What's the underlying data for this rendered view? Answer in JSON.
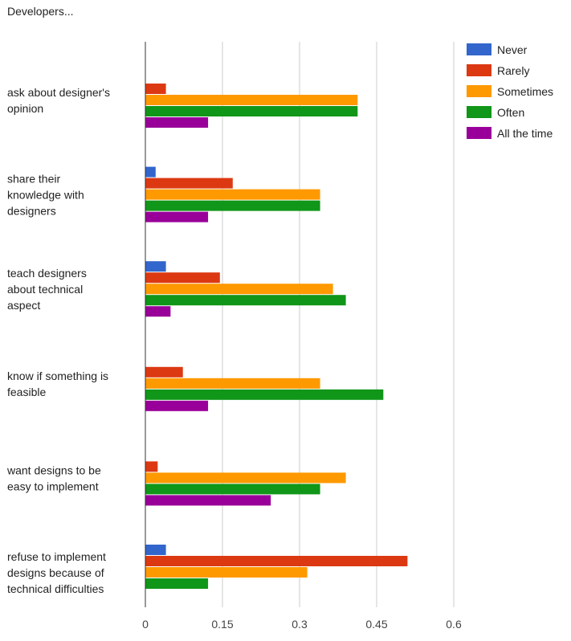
{
  "chart_data": {
    "type": "bar",
    "orientation": "horizontal",
    "title": "Developers...",
    "xlabel": "",
    "ylabel": "",
    "xlim": [
      0,
      0.6
    ],
    "xticks": [
      "0",
      "0.15",
      "0.3",
      "0.45",
      "0.6"
    ],
    "grid": true,
    "legend_position": "top-right",
    "categories": [
      [
        "ask about designer's",
        "opinion"
      ],
      [
        "share their",
        "knowledge with",
        "designers"
      ],
      [
        "teach designers",
        "about technical",
        "aspect"
      ],
      [
        "know if something is",
        "feasible"
      ],
      [
        "want designs to be",
        "easy to implement"
      ],
      [
        "refuse to implement",
        "designs because of",
        "technical difficulties"
      ]
    ],
    "series": [
      {
        "name": "Never",
        "color": "#3366cc",
        "values": [
          0,
          0.02,
          0.04,
          0,
          0,
          0.04
        ]
      },
      {
        "name": "Rarely",
        "color": "#dc3912",
        "values": [
          0.04,
          0.17,
          0.145,
          0.073,
          0.024,
          0.51
        ]
      },
      {
        "name": "Sometimes",
        "color": "#ff9900",
        "values": [
          0.413,
          0.34,
          0.365,
          0.34,
          0.39,
          0.315
        ]
      },
      {
        "name": "Often",
        "color": "#109618",
        "values": [
          0.413,
          0.34,
          0.39,
          0.463,
          0.34,
          0.122
        ]
      },
      {
        "name": "All the time",
        "color": "#990099",
        "values": [
          0.122,
          0.122,
          0.049,
          0.122,
          0.244,
          0
        ]
      }
    ]
  }
}
